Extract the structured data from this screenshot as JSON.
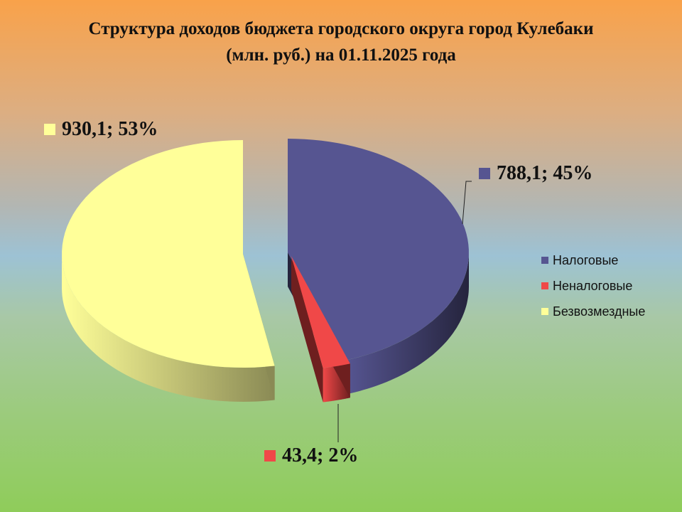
{
  "chart_data": {
    "type": "pie",
    "title_line1": "Структура доходов бюджета городского округа город Кулебаки",
    "title_line2": "(млн. руб.) на 01.11.2025 года",
    "slices": [
      {
        "name": "Налоговые",
        "value": 788.1,
        "percent": 45,
        "label": "788,1; 45%",
        "color": "#565591",
        "side_color": "#25243d"
      },
      {
        "name": "Неналоговые",
        "value": 43.4,
        "percent": 2,
        "label": "43,4; 2%",
        "color": "#f04848",
        "side_color": "#6e1f1f"
      },
      {
        "name": "Безвозмездные",
        "value": 930.1,
        "percent": 53,
        "label": "930,1; 53%",
        "color": "#ffff99",
        "side_color": "#8a8a55"
      }
    ],
    "legend_position": "right"
  }
}
